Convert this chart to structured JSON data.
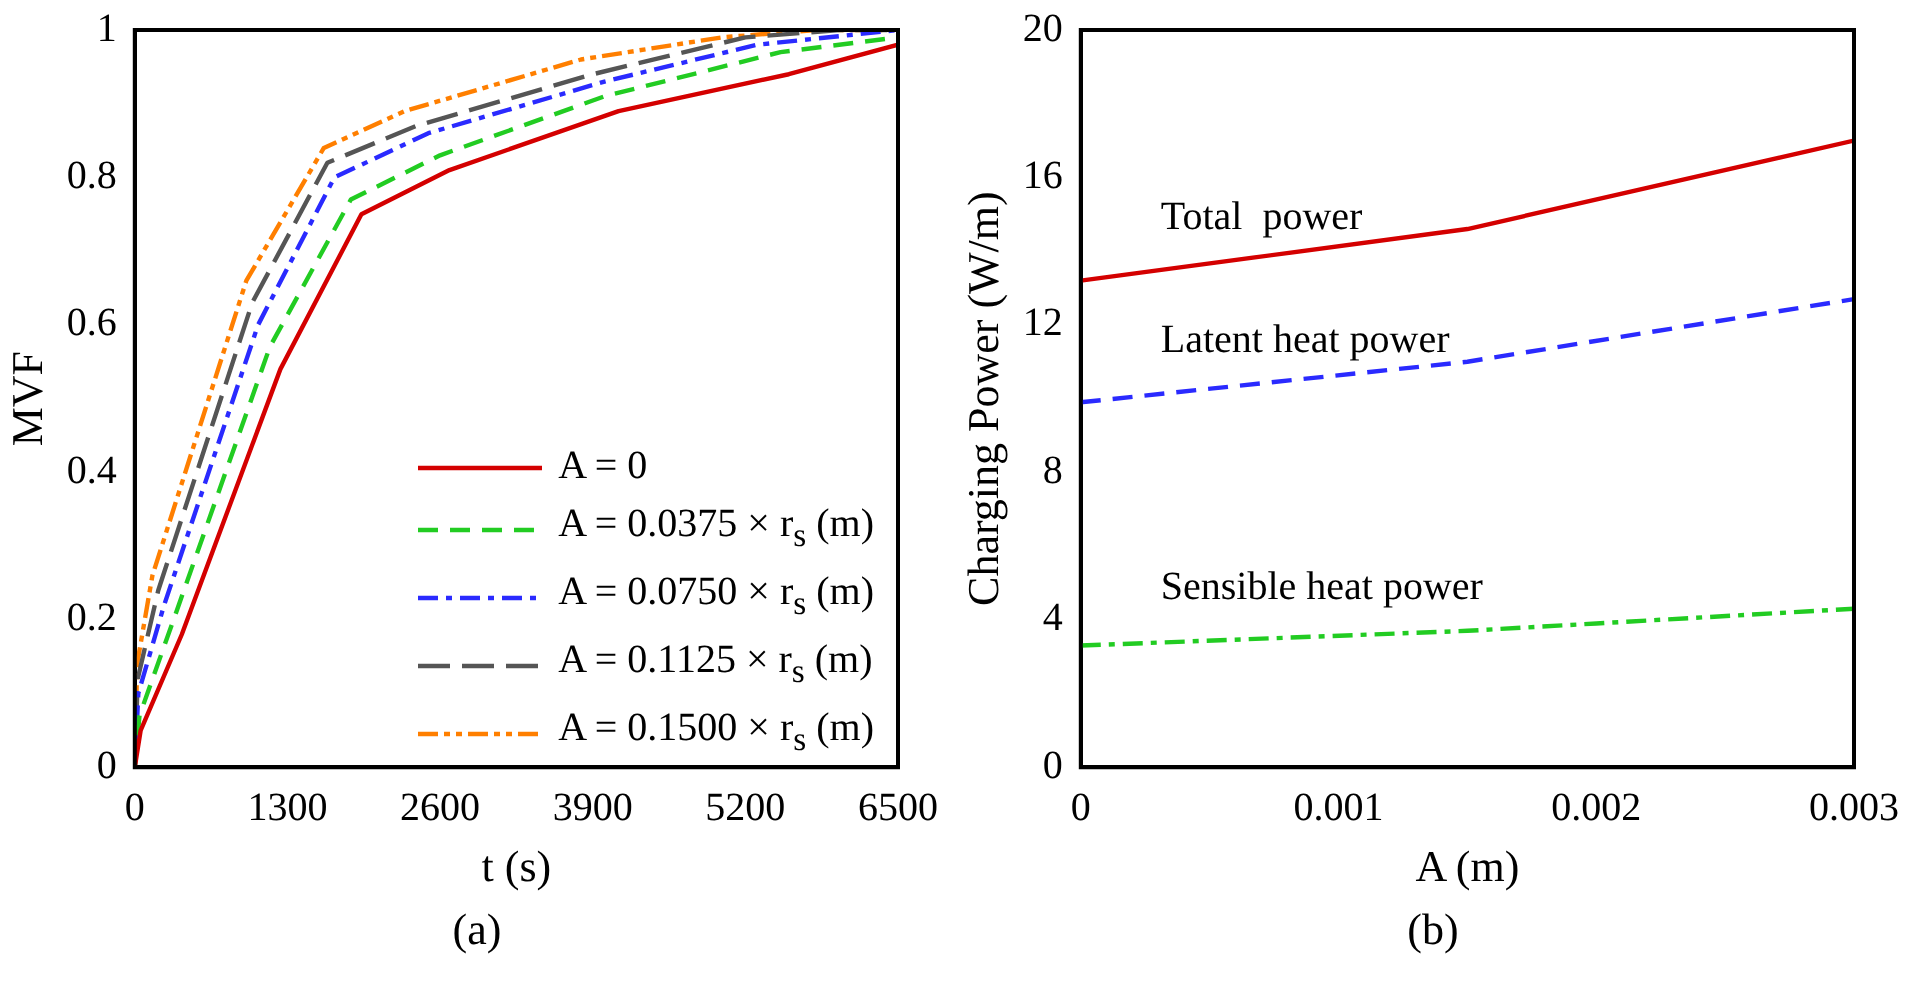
{
  "chart_data": [
    {
      "type": "line",
      "xlabel": "t (s)",
      "ylabel": "MVF",
      "annotations": [
        "(a)"
      ],
      "xlim": [
        0,
        6500
      ],
      "xticks": [
        0,
        1300,
        2600,
        3900,
        5200,
        6500
      ],
      "ylim": [
        0,
        1
      ],
      "yticks": [
        0,
        0.2,
        0.4,
        0.6,
        0.8,
        1
      ],
      "legend": "bottom right",
      "grid": false,
      "marker": "none",
      "series": [
        {
          "name": "A = 0",
          "color": "#d40000",
          "line_style": "solid",
          "x": [
            0,
            50,
            400,
            1240,
            1930,
            2680,
            4120,
            5570,
            6500
          ],
          "values": [
            0,
            0.05,
            0.18,
            0.54,
            0.75,
            0.81,
            0.89,
            0.94,
            0.98
          ]
        },
        {
          "name": "A = 0.0375 × r$_{s}$ (m)",
          "color": "#22cc22",
          "line_style": "dashed",
          "x": [
            0,
            40,
            330,
            1150,
            1840,
            2600,
            4000,
            5500,
            6500
          ],
          "values": [
            0,
            0.07,
            0.2,
            0.57,
            0.77,
            0.83,
            0.91,
            0.97,
            0.99
          ]
        },
        {
          "name": "A = 0.0750 × r$_{s}$ (m)",
          "color": "#2a2aff",
          "line_style": "dashed",
          "x": [
            0,
            30,
            250,
            1050,
            1700,
            2500,
            4000,
            5300,
            6500
          ],
          "values": [
            0,
            0.1,
            0.22,
            0.6,
            0.8,
            0.86,
            0.93,
            0.98,
            1
          ]
        },
        {
          "name": "A = 0.1125 × r$_{s}$ (m)",
          "color": "#555555",
          "line_style": "dashed",
          "x": [
            0,
            25,
            200,
            1000,
            1640,
            2400,
            3900,
            5200,
            6000,
            6500
          ],
          "values": [
            0,
            0.12,
            0.24,
            0.63,
            0.82,
            0.87,
            0.94,
            0.99,
            1,
            1
          ]
        },
        {
          "name": "A = 0.1500 × r$_{s}$ (m)",
          "color": "#ff7f00",
          "line_style": "dashed",
          "x": [
            0,
            20,
            150,
            950,
            1610,
            2300,
            3800,
            5000,
            5800,
            6500
          ],
          "values": [
            0,
            0.14,
            0.26,
            0.66,
            0.84,
            0.89,
            0.96,
            0.99,
            1,
            1
          ]
        }
      ]
    },
    {
      "type": "line",
      "xlabel": "A (m)",
      "ylabel": "Charging Power (W/m)",
      "annotations": [
        "(b)"
      ],
      "xlim": [
        0,
        0.003
      ],
      "xticks": [
        0,
        0.001,
        0.002,
        0.003
      ],
      "ylim": [
        0,
        20
      ],
      "yticks": [
        0,
        4,
        8,
        12,
        16,
        20
      ],
      "legend": false,
      "grid": false,
      "marker": "none",
      "series": [
        {
          "name": "Total  power",
          "color": "#d40000",
          "line_style": "solid",
          "x": [
            0,
            0.0015,
            0.003
          ],
          "values": [
            13.2,
            14.6,
            17
          ]
        },
        {
          "name": "Latent heat power",
          "color": "#2a2aff",
          "line_style": "dashed",
          "x": [
            0,
            0.0015,
            0.003
          ],
          "values": [
            9.9,
            11,
            12.7
          ]
        },
        {
          "name": "Sensible heat power",
          "color": "#22cc22",
          "line_style": "dashed",
          "x": [
            0,
            0.0015,
            0.002,
            0.003
          ],
          "values": [
            3.3,
            3.7,
            3.9,
            4.3
          ]
        }
      ]
    }
  ]
}
